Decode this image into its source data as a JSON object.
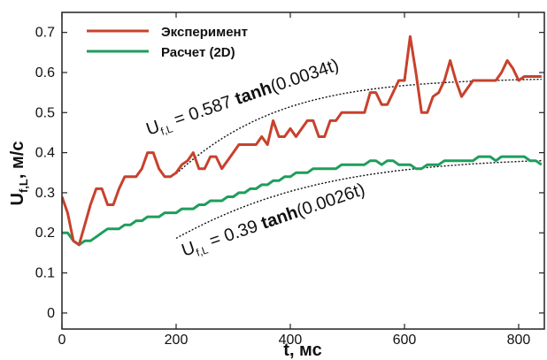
{
  "chart_data": {
    "type": "line",
    "xlabel": "t, мс",
    "ylabel_main": "U",
    "ylabel_sub": "f,L",
    "ylabel_unit": ", м/с",
    "xlim": [
      0,
      845
    ],
    "ylim": [
      -0.04,
      0.75
    ],
    "xticks": [
      0,
      200,
      400,
      600,
      800
    ],
    "yticks": [
      0,
      0.1,
      0.2,
      0.3,
      0.4,
      0.5,
      0.6,
      0.7
    ],
    "xtick_labels": [
      "0",
      "200",
      "400",
      "600",
      "800"
    ],
    "ytick_labels": [
      "0",
      "0.1",
      "0.2",
      "0.3",
      "0.4",
      "0.5",
      "0.6",
      "0.7"
    ],
    "legend_position": "top-left",
    "series": [
      {
        "name": "Эксперимент",
        "color": "#c8412c",
        "x": [
          0,
          10,
          20,
          30,
          40,
          50,
          60,
          70,
          80,
          90,
          100,
          110,
          120,
          130,
          140,
          150,
          160,
          170,
          180,
          190,
          200,
          210,
          220,
          230,
          240,
          250,
          260,
          270,
          280,
          290,
          300,
          310,
          320,
          330,
          340,
          350,
          360,
          370,
          380,
          390,
          400,
          410,
          420,
          430,
          440,
          450,
          460,
          470,
          480,
          490,
          500,
          510,
          520,
          530,
          540,
          550,
          560,
          570,
          580,
          590,
          600,
          610,
          620,
          630,
          640,
          650,
          660,
          670,
          680,
          690,
          700,
          710,
          720,
          730,
          740,
          750,
          760,
          770,
          780,
          790,
          800,
          810,
          820,
          830,
          840
        ],
        "values": [
          0.29,
          0.25,
          0.18,
          0.17,
          0.22,
          0.27,
          0.31,
          0.31,
          0.27,
          0.27,
          0.31,
          0.34,
          0.34,
          0.34,
          0.36,
          0.4,
          0.4,
          0.36,
          0.34,
          0.34,
          0.35,
          0.37,
          0.38,
          0.4,
          0.36,
          0.36,
          0.39,
          0.39,
          0.36,
          0.38,
          0.4,
          0.42,
          0.42,
          0.42,
          0.42,
          0.44,
          0.42,
          0.48,
          0.44,
          0.44,
          0.46,
          0.44,
          0.46,
          0.48,
          0.48,
          0.44,
          0.44,
          0.48,
          0.48,
          0.5,
          0.5,
          0.5,
          0.5,
          0.5,
          0.55,
          0.55,
          0.52,
          0.52,
          0.55,
          0.58,
          0.58,
          0.69,
          0.6,
          0.5,
          0.5,
          0.54,
          0.55,
          0.58,
          0.63,
          0.58,
          0.54,
          0.56,
          0.58,
          0.58,
          0.58,
          0.58,
          0.58,
          0.6,
          0.63,
          0.61,
          0.58,
          0.59,
          0.59,
          0.59,
          0.59
        ]
      },
      {
        "name": "Расчет (2D)",
        "color": "#1e9e5c",
        "x": [
          0,
          10,
          20,
          30,
          40,
          50,
          60,
          70,
          80,
          90,
          100,
          110,
          120,
          130,
          140,
          150,
          160,
          170,
          180,
          190,
          200,
          210,
          220,
          230,
          240,
          250,
          260,
          270,
          280,
          290,
          300,
          310,
          320,
          330,
          340,
          350,
          360,
          370,
          380,
          390,
          400,
          410,
          420,
          430,
          440,
          450,
          460,
          470,
          480,
          490,
          500,
          510,
          520,
          530,
          540,
          550,
          560,
          570,
          580,
          590,
          600,
          610,
          620,
          630,
          640,
          650,
          660,
          670,
          680,
          690,
          700,
          710,
          720,
          730,
          740,
          750,
          760,
          770,
          780,
          790,
          800,
          810,
          820,
          830,
          840
        ],
        "values": [
          0.2,
          0.2,
          0.18,
          0.17,
          0.18,
          0.18,
          0.19,
          0.2,
          0.21,
          0.21,
          0.21,
          0.22,
          0.22,
          0.23,
          0.23,
          0.24,
          0.24,
          0.24,
          0.25,
          0.25,
          0.25,
          0.26,
          0.26,
          0.26,
          0.27,
          0.27,
          0.28,
          0.28,
          0.28,
          0.29,
          0.29,
          0.3,
          0.3,
          0.31,
          0.31,
          0.32,
          0.32,
          0.33,
          0.33,
          0.34,
          0.34,
          0.35,
          0.35,
          0.35,
          0.36,
          0.36,
          0.36,
          0.36,
          0.36,
          0.37,
          0.37,
          0.37,
          0.37,
          0.37,
          0.38,
          0.38,
          0.37,
          0.38,
          0.38,
          0.37,
          0.37,
          0.37,
          0.36,
          0.36,
          0.37,
          0.37,
          0.37,
          0.38,
          0.38,
          0.38,
          0.38,
          0.38,
          0.38,
          0.39,
          0.39,
          0.39,
          0.38,
          0.39,
          0.39,
          0.39,
          0.39,
          0.39,
          0.38,
          0.38,
          0.37
        ]
      }
    ],
    "fits": [
      {
        "A": 0.587,
        "k": 0.0034,
        "x_from": 200,
        "x_to": 840,
        "lead": "U",
        "sub": "f,L",
        "eq": " = 0.587 ",
        "fn": "tanh",
        "arg": "(0.0034t)"
      },
      {
        "A": 0.39,
        "k": 0.0026,
        "x_from": 200,
        "x_to": 840,
        "lead": "U",
        "sub": "f,L",
        "eq": " = 0.39 ",
        "fn": "tanh",
        "arg": "(0.0026t)"
      }
    ]
  }
}
